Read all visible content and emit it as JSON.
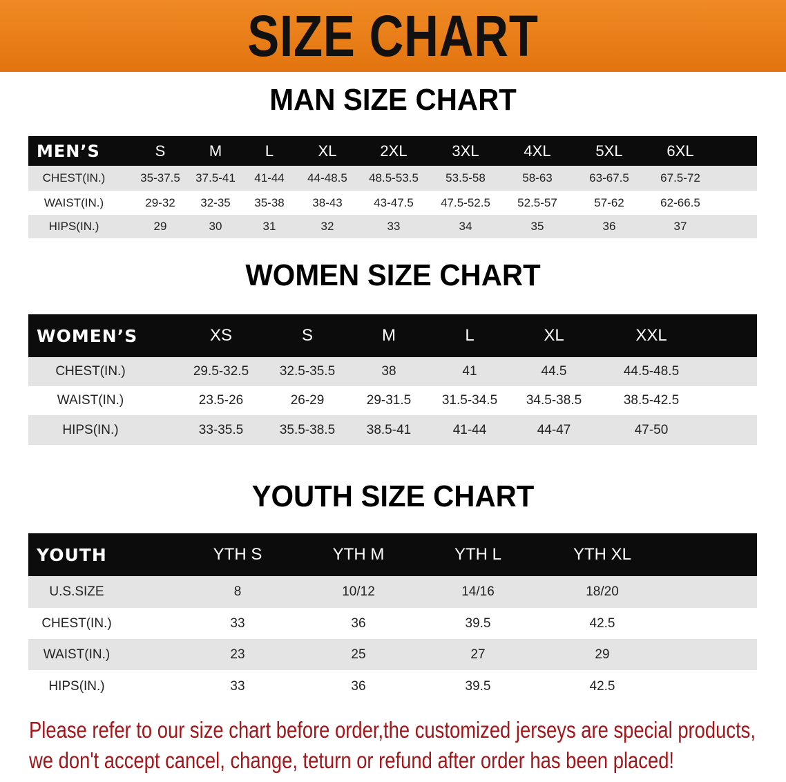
{
  "banner": {
    "title": "SIZE CHART"
  },
  "men": {
    "title": "MAN SIZE CHART",
    "header": [
      "MEN’S",
      "S",
      "M",
      "L",
      "XL",
      "2XL",
      "3XL",
      "4XL",
      "5XL",
      "6XL"
    ],
    "rows": [
      [
        "CHEST(IN.)",
        "35-37.5",
        "37.5-41",
        "41-44",
        "44-48.5",
        "48.5-53.5",
        "53.5-58",
        "58-63",
        "63-67.5",
        "67.5-72"
      ],
      [
        "WAIST(IN.)",
        "29-32",
        "32-35",
        "35-38",
        "38-43",
        "43-47.5",
        "47.5-52.5",
        "52.5-57",
        "57-62",
        "62-66.5"
      ],
      [
        "HIPS(IN.)",
        "29",
        "30",
        "31",
        "32",
        "33",
        "34",
        "35",
        "36",
        "37"
      ]
    ]
  },
  "women": {
    "title": "WOMEN SIZE CHART",
    "header": [
      "WOMEN’S",
      "XS",
      "S",
      "M",
      "L",
      "XL",
      "XXL"
    ],
    "rows": [
      [
        "CHEST(IN.)",
        "29.5-32.5",
        "32.5-35.5",
        "38",
        "41",
        "44.5",
        "44.5-48.5"
      ],
      [
        "WAIST(IN.)",
        "23.5-26",
        "26-29",
        "29-31.5",
        "31.5-34.5",
        "34.5-38.5",
        "38.5-42.5"
      ],
      [
        "HIPS(IN.)",
        "33-35.5",
        "35.5-38.5",
        "38.5-41",
        "41-44",
        "44-47",
        "47-50"
      ]
    ]
  },
  "youth": {
    "title": "YOUTH SIZE CHART",
    "header": [
      "YOUTH",
      "YTH S",
      "YTH M",
      "YTH L",
      "YTH XL"
    ],
    "rows": [
      [
        "U.S.SIZE",
        "8",
        "10/12",
        "14/16",
        "18/20"
      ],
      [
        "CHEST(IN.)",
        "33",
        "36",
        "39.5",
        "42.5"
      ],
      [
        "WAIST(IN.)",
        "23",
        "25",
        "27",
        "29"
      ],
      [
        "HIPS(IN.)",
        "33",
        "36",
        "39.5",
        "42.5"
      ]
    ]
  },
  "notice": {
    "line1": "Please refer to our size chart before order,the customized jerseys are special products,",
    "line2": "we don't accept cancel, change, teturn or refund after order has been placed!"
  },
  "colors": {
    "banner": "#e87a1a",
    "header_row": "#0c0c0c",
    "stripe": "#e4e4e4",
    "notice": "#a3161a"
  }
}
